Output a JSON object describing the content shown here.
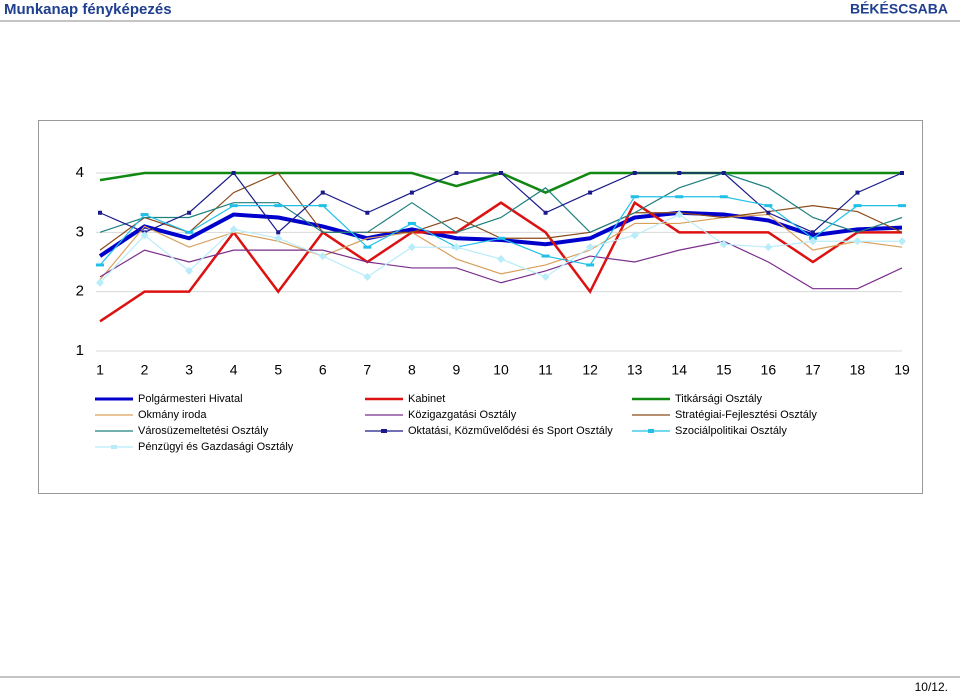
{
  "header": {
    "title": "Munkanap fényképezés",
    "location": "BÉKÉSCSABA"
  },
  "chart_data": {
    "type": "line",
    "x": [
      1,
      2,
      3,
      4,
      5,
      6,
      7,
      8,
      9,
      10,
      11,
      12,
      13,
      14,
      15,
      16,
      17,
      18,
      19
    ],
    "xlim": [
      1,
      19
    ],
    "xticks": [
      1,
      2,
      3,
      4,
      5,
      6,
      7,
      8,
      9,
      10,
      11,
      12,
      13,
      14,
      15,
      16,
      17,
      18,
      19
    ],
    "ylim": [
      1,
      4
    ],
    "yticks": [
      1,
      2,
      3,
      4
    ],
    "grid": true,
    "series": [
      {
        "name": "Polgármesteri Hivatal",
        "color": "#0000cc",
        "width": 4,
        "values": [
          2.6,
          3.1,
          2.9,
          3.3,
          3.25,
          3.1,
          2.9,
          3.05,
          2.9,
          2.87,
          2.8,
          2.9,
          3.25,
          3.33,
          3.3,
          3.2,
          2.95,
          3.05,
          3.08
        ]
      },
      {
        "name": "Kabinet",
        "color": "#dd1111",
        "width": 2.5,
        "values": [
          1.5,
          2,
          2,
          3,
          2,
          3,
          2.5,
          3,
          3,
          3.5,
          3,
          2,
          3.5,
          3,
          3,
          3,
          2.5,
          3,
          3
        ]
      },
      {
        "name": "Titkársági Osztály",
        "color": "#118811",
        "width": 2.5,
        "values": [
          3.88,
          4,
          4,
          4,
          4,
          4,
          4,
          4,
          3.78,
          4,
          3.67,
          4,
          4,
          4,
          4,
          4,
          4,
          4,
          4
        ]
      },
      {
        "name": "Okmány iroda",
        "color": "#d9a05b",
        "width": 1.2,
        "values": [
          2.2,
          3.1,
          2.75,
          3,
          2.85,
          2.6,
          2.9,
          3,
          2.55,
          2.3,
          2.45,
          2.7,
          3.15,
          3.15,
          3.25,
          3.3,
          2.7,
          2.85,
          2.75
        ]
      },
      {
        "name": "Közigazgatási Osztály",
        "color": "#7a2d8c",
        "width": 1.2,
        "values": [
          2.25,
          2.7,
          2.5,
          2.7,
          2.7,
          2.7,
          2.5,
          2.4,
          2.4,
          2.15,
          2.35,
          2.6,
          2.5,
          2.7,
          2.85,
          2.5,
          2.05,
          2.05,
          2.4
        ]
      },
      {
        "name": "Stratégiai-Fejlesztési Osztály",
        "color": "#8b4a1b",
        "width": 1.2,
        "values": [
          2.7,
          3.25,
          3,
          3.67,
          4,
          3,
          3,
          3,
          3.25,
          2.9,
          2.9,
          3,
          3.33,
          3.33,
          3.25,
          3.35,
          3.45,
          3.35,
          3
        ]
      },
      {
        "name": "Városüzemeltetési Osztály",
        "color": "#1f8080",
        "width": 1.2,
        "values": [
          3,
          3.25,
          3.25,
          3.5,
          3.5,
          3,
          3,
          3.5,
          3,
          3.25,
          3.75,
          3,
          3.33,
          3.75,
          4,
          3.75,
          3.25,
          3,
          3.25
        ]
      },
      {
        "name": "Oktatási, Közművelődési és Sport Osztály",
        "color": "#1a1a8c",
        "width": 1.2,
        "marker": "square",
        "values": [
          3.33,
          3,
          3.33,
          4,
          3,
          3.67,
          3.33,
          3.67,
          4,
          4,
          3.33,
          3.67,
          4,
          4,
          4,
          3.33,
          3,
          3.67,
          4
        ]
      },
      {
        "name": "Szociálpolitikai Osztály",
        "color": "#22c0e8",
        "width": 1.2,
        "marker": "dash",
        "values": [
          2.45,
          3.3,
          3,
          3.45,
          3.45,
          3.45,
          2.75,
          3.15,
          2.75,
          2.9,
          2.6,
          2.45,
          3.6,
          3.6,
          3.6,
          3.45,
          2.9,
          3.45,
          3.45
        ]
      },
      {
        "name": "Pénzügyi és Gazdasági Osztály",
        "color": "#b8ecfa",
        "width": 1.2,
        "marker": "diamond",
        "values": [
          2.15,
          2.95,
          2.35,
          3.05,
          2.9,
          2.6,
          2.25,
          2.75,
          2.75,
          2.55,
          2.25,
          2.75,
          2.95,
          3.3,
          2.8,
          2.75,
          2.85,
          2.85,
          2.85
        ]
      }
    ]
  },
  "footer": {
    "page": "10/12."
  }
}
